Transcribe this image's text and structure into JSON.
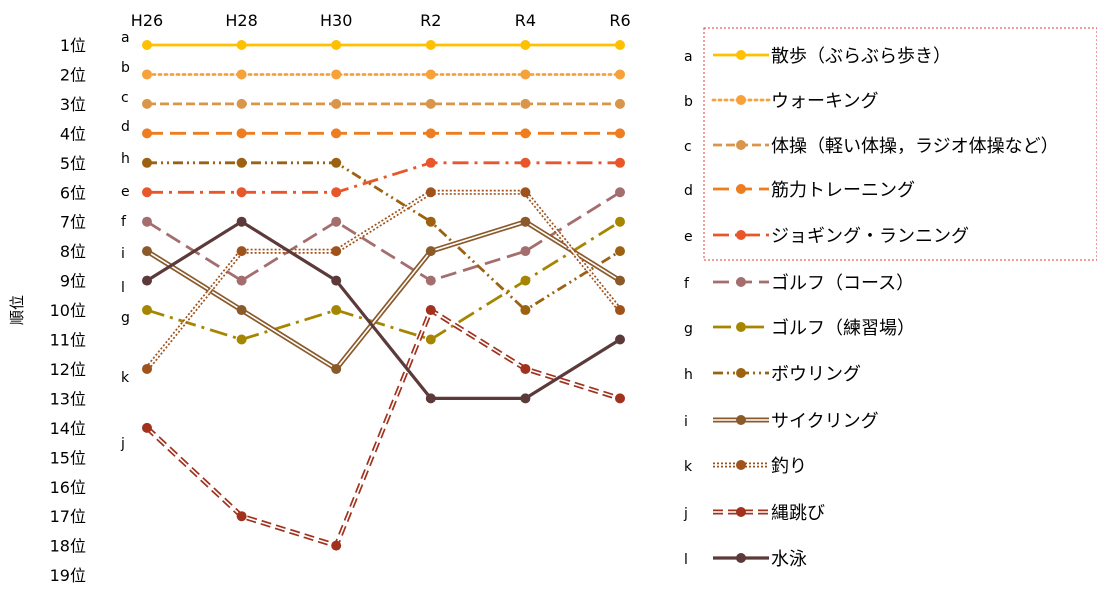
{
  "chart_data": {
    "type": "line",
    "title": "",
    "xlabel": "",
    "ylabel": "順位",
    "categories": [
      "H26",
      "H28",
      "H30",
      "R2",
      "R4",
      "R6"
    ],
    "y_ticks": [
      "1位",
      "2位",
      "3位",
      "4位",
      "5位",
      "6位",
      "7位",
      "8位",
      "9位",
      "10位",
      "11位",
      "12位",
      "13位",
      "14位",
      "15位",
      "16位",
      "17位",
      "18位",
      "19位"
    ],
    "ylim": [
      1,
      19
    ],
    "y_inverted": true,
    "grid": false,
    "legend_position": "right",
    "series": [
      {
        "letter": "a",
        "name": "散歩（ぶらぶら歩き）",
        "values": [
          1,
          1,
          1,
          1,
          1,
          1
        ],
        "color": "#FFC000",
        "line_style": "solid"
      },
      {
        "letter": "b",
        "name": "ウォーキング",
        "values": [
          2,
          2,
          2,
          2,
          2,
          2
        ],
        "color": "#F7A13B",
        "line_style": "dotted"
      },
      {
        "letter": "c",
        "name": "体操（軽い体操，ラジオ体操など）",
        "values": [
          3,
          3,
          3,
          3,
          3,
          3
        ],
        "color": "#D9964A",
        "line_style": "dashed"
      },
      {
        "letter": "d",
        "name": "筋力トレーニング",
        "values": [
          4,
          4,
          4,
          4,
          4,
          4
        ],
        "color": "#EE7D1F",
        "line_style": "long-dash"
      },
      {
        "letter": "e",
        "name": "ジョギング・ランニング",
        "values": [
          6,
          6,
          6,
          5,
          5,
          5
        ],
        "color": "#E8562A",
        "line_style": "dash-dot"
      },
      {
        "letter": "f",
        "name": "ゴルフ（コース）",
        "values": [
          7,
          9,
          7,
          9,
          8,
          6
        ],
        "color": "#A46E6E",
        "line_style": "long-dash"
      },
      {
        "letter": "g",
        "name": "ゴルフ（練習場）",
        "values": [
          10,
          11,
          10,
          11,
          9,
          7
        ],
        "color": "#A68600",
        "line_style": "long-dash-dot"
      },
      {
        "letter": "h",
        "name": "ボウリング",
        "values": [
          5,
          5,
          5,
          7,
          10,
          8
        ],
        "color": "#9C6212",
        "line_style": "dash-dot-dot"
      },
      {
        "letter": "i",
        "name": "サイクリング",
        "values": [
          8,
          10,
          12,
          8,
          7,
          9
        ],
        "color": "#8A5A2B",
        "line_style": "double"
      },
      {
        "letter": "k",
        "name": "釣り",
        "values": [
          12,
          8,
          8,
          6,
          6,
          10
        ],
        "color": "#A0521D",
        "line_style": "double-dotted"
      },
      {
        "letter": "j",
        "name": "縄跳び",
        "values": [
          14,
          17,
          18,
          10,
          12,
          13
        ],
        "color": "#A0321E",
        "line_style": "double-dashed"
      },
      {
        "letter": "l",
        "name": "水泳",
        "values": [
          9,
          7,
          9,
          13,
          13,
          11
        ],
        "color": "#5C3A3A",
        "line_style": "solid-thick"
      }
    ]
  }
}
